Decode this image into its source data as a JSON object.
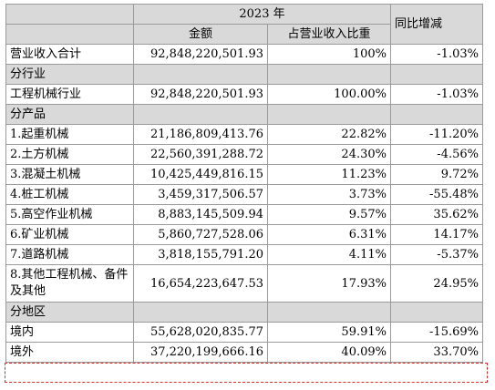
{
  "header": {
    "year": "2023 年",
    "amount": "金额",
    "share": "占营业收入比重",
    "yoy": "同比增减"
  },
  "total": {
    "label": "营业收入合计",
    "amount": "92,848,220,501.93",
    "share": "100%",
    "yoy": "-1.03%"
  },
  "section_industry": "分行业",
  "industry": {
    "label": "工程机械行业",
    "amount": "92,848,220,501.93",
    "share": "100.00%",
    "yoy": "-1.03%"
  },
  "section_product": "分产品",
  "products": [
    {
      "label": "1.起重机械",
      "amount": "21,186,809,413.76",
      "share": "22.82%",
      "yoy": "-11.20%"
    },
    {
      "label": "2.土方机械",
      "amount": "22,560,391,288.72",
      "share": "24.30%",
      "yoy": "-4.56%"
    },
    {
      "label": "3.混凝土机械",
      "amount": "10,425,449,816.15",
      "share": "11.23%",
      "yoy": "9.72%"
    },
    {
      "label": "4.桩工机械",
      "amount": "3,459,317,506.57",
      "share": "3.73%",
      "yoy": "-55.48%"
    },
    {
      "label": "5.高空作业机械",
      "amount": "8,883,145,509.94",
      "share": "9.57%",
      "yoy": "35.62%"
    },
    {
      "label": "6.矿业机械",
      "amount": "5,860,727,528.06",
      "share": "6.31%",
      "yoy": "14.17%"
    },
    {
      "label": "7.道路机械",
      "amount": "3,818,155,791.20",
      "share": "4.11%",
      "yoy": "-5.37%"
    },
    {
      "label": "8.其他工程机械、备件及其他",
      "amount": "16,654,223,647.53",
      "share": "17.93%",
      "yoy": "24.95%"
    }
  ],
  "section_region": "分地区",
  "regions": [
    {
      "label": "境内",
      "amount": "55,628,020,835.77",
      "share": "59.91%",
      "yoy": "-15.69%"
    },
    {
      "label": "境外",
      "amount": "37,220,199,666.16",
      "share": "40.09%",
      "yoy": "33.70%"
    }
  ]
}
